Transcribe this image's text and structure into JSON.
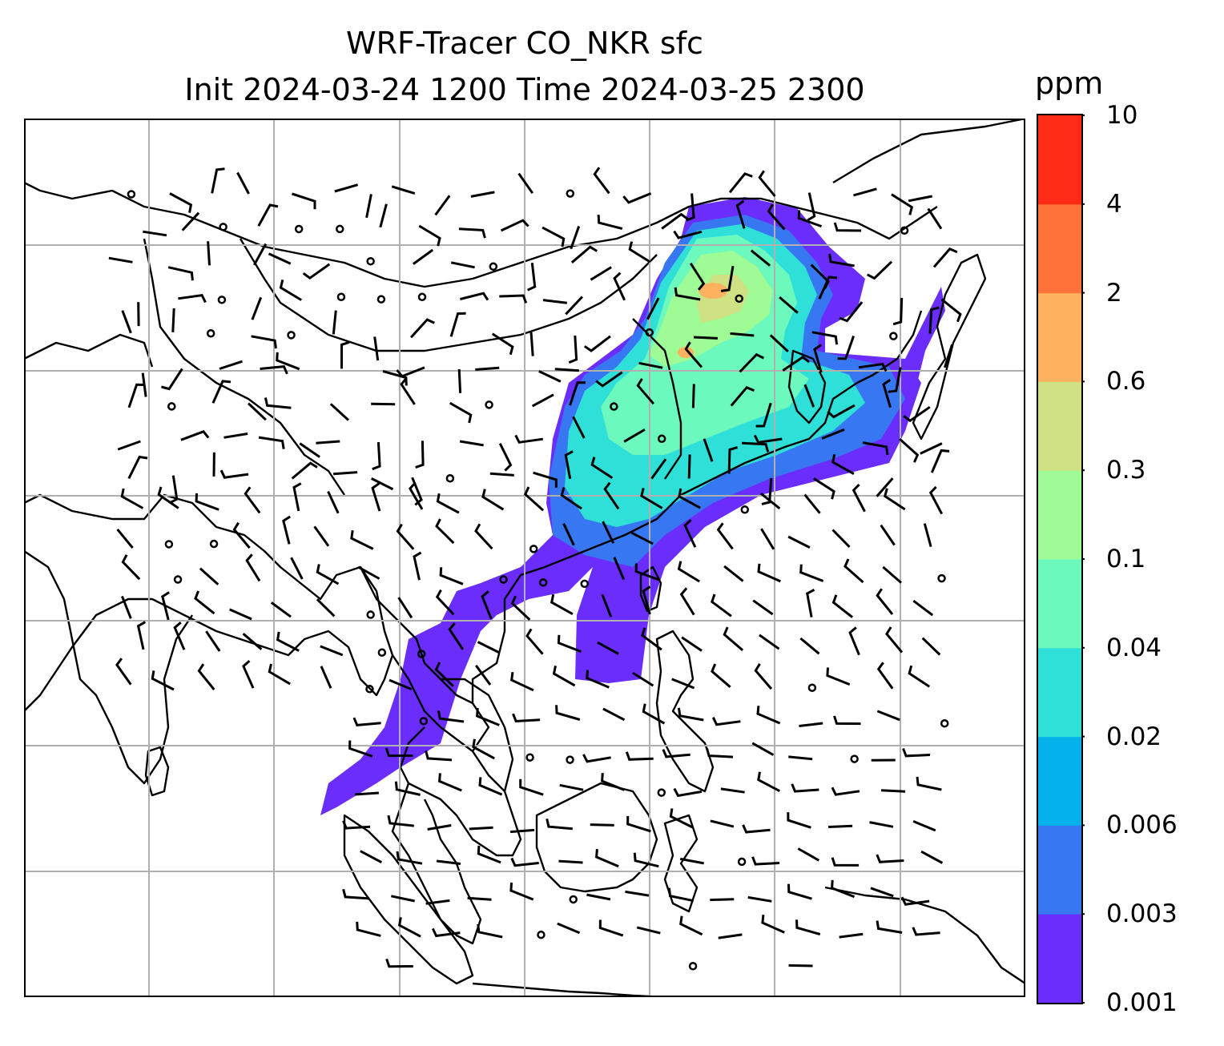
{
  "title_line1": "WRF-Tracer CO_NKR sfc",
  "title_line2": "Init 2024-03-24 1200 Time 2024-03-25 2300",
  "colorbar": {
    "unit": "ppm",
    "levels": [
      "0.001",
      "0.003",
      "0.006",
      "0.02",
      "0.04",
      "0.1",
      "0.3",
      "0.6",
      "2",
      "4",
      "10"
    ],
    "colors": [
      "#6a2dfc",
      "#3777f1",
      "#05b1ea",
      "#2ee0d7",
      "#6cf9bd",
      "#9efb96",
      "#cee284",
      "#feb15f",
      "#ff7239",
      "#ff2b15"
    ]
  },
  "map": {
    "description_free": true,
    "land_outline_color": "#000000",
    "grid_color": "#b0b0b0"
  }
}
